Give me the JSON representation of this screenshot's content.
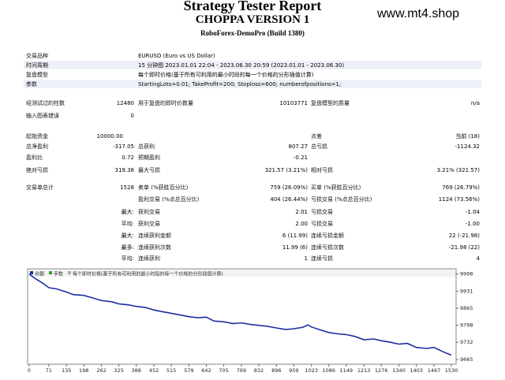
{
  "report": {
    "title": "Strategy Tester Report",
    "expert": "CHOPPA VERSION 1",
    "server": "RoboForex-DemoPro (Build 1380)",
    "watermark": "www.mt4.shop"
  },
  "info": [
    {
      "label": "交易品种",
      "value": "EURUSD (Euro vs US Dollar)"
    },
    {
      "label": "时间周期",
      "value": "15 分钟图 2023.01.01 22:04 - 2023.06.30 20:59 (2023.01.01 - 2023.06.30)"
    },
    {
      "label": "复盘模型",
      "value": "每个即时价格(基于所有可利用的最小时段的每一个价格的分形插值计算)"
    },
    {
      "label": "参数",
      "value": "StartingLots=0.01; TakeProfit=200; Stoploss=600; numberofpositions=1;"
    }
  ],
  "bars": {
    "l1": "经测试过的柱数",
    "v1": "12480",
    "l2": "用于复盘的即时价数量",
    "v2": "10103771",
    "l3": "复盘模型的质量",
    "v3": "n/a",
    "l4": "输入图表错误",
    "v4": "0"
  },
  "stats": {
    "deposit_label": "起始资金",
    "deposit": "10000.00",
    "spread_label": "点差",
    "spread": "当前 (18)",
    "net_label": "总净盈利",
    "net": "-317.05",
    "gross_profit_label": "总获利",
    "gross_profit": "807.27",
    "gross_loss_label": "总亏损",
    "gross_loss": "-1124.32",
    "pf_label": "盈利比",
    "pf": "0.72",
    "ep_label": "预期盈利",
    "ep": "-0.21",
    "abs_dd_label": "绝对亏损",
    "abs_dd": "319.38",
    "max_dd_label": "最大亏损",
    "max_dd": "321.57 (3.21%)",
    "rel_dd_label": "相对亏损",
    "rel_dd": "3.21% (321.57)",
    "trades_label": "交易单总计",
    "trades": "1528",
    "short_label": "卖单 (%获胜百分比)",
    "short": "759 (26.09%)",
    "long_label": "买单 (%获胜百分比)",
    "long": "769 (26.79%)",
    "pt_label": "盈利交易 (%点总百分比)",
    "pt": "404 (26.44%)",
    "lt_label": "亏损交易 (%点总百分比)",
    "lt": "1124 (73.56%)",
    "largest_label": "最大:",
    "lp_label": "获利交易",
    "lp": "2.01",
    "ll_label": "亏损交易",
    "ll": "-1.04",
    "average_label": "平均:",
    "ap_label": "获利交易",
    "ap": "2.00",
    "al_label": "亏损交易",
    "al": "-1.00",
    "max_label": "最大:",
    "mcw_label": "连续获利金额",
    "mcw": "6 (11.99)",
    "mcl_label": "连续亏损金额",
    "mcl": "22 (-21.98)",
    "max2_label": "最多:",
    "mcp_label": "连续获利次数",
    "mcp": "11.99 (6)",
    "mcll_label": "连续亏损次数",
    "mcll": "-21.98 (22)",
    "avg2_label": "平均:",
    "acw_label": "连续获利",
    "acw": "1",
    "acl_label": "连续亏损",
    "acl": "4"
  },
  "chart_data": {
    "type": "line",
    "title": "",
    "legend": [
      "余额",
      "手数",
      "每个即时价格(基于所有可利用的最小时段的每一个价格的分形插值计算)"
    ],
    "xlabel": "",
    "ylabel": "",
    "x_ticks": [
      0,
      71,
      135,
      198,
      262,
      325,
      388,
      452,
      515,
      579,
      642,
      705,
      769,
      832,
      896,
      959,
      1023,
      1086,
      1149,
      1213,
      1276,
      1340,
      1403,
      1467,
      1530
    ],
    "y_ticks": [
      9998,
      9931,
      9865,
      9798,
      9732,
      9665
    ],
    "xlim": [
      0,
      1530
    ],
    "ylim": [
      9665,
      10000
    ],
    "x": [
      0,
      20,
      50,
      71,
      100,
      135,
      160,
      198,
      230,
      262,
      300,
      325,
      360,
      388,
      420,
      452,
      480,
      515,
      550,
      579,
      610,
      642,
      670,
      705,
      740,
      769,
      800,
      832,
      860,
      896,
      930,
      959,
      990,
      1010,
      1023,
      1050,
      1086,
      1120,
      1149,
      1180,
      1213,
      1250,
      1276,
      1310,
      1340,
      1370,
      1403,
      1440,
      1467,
      1500,
      1530
    ],
    "y": [
      9998,
      9982,
      9962,
      9945,
      9940,
      9928,
      9918,
      9915,
      9905,
      9895,
      9890,
      9882,
      9878,
      9872,
      9868,
      9858,
      9852,
      9845,
      9838,
      9832,
      9828,
      9830,
      9815,
      9812,
      9805,
      9808,
      9802,
      9798,
      9795,
      9788,
      9782,
      9785,
      9790,
      9800,
      9792,
      9782,
      9770,
      9765,
      9762,
      9755,
      9742,
      9745,
      9738,
      9732,
      9725,
      9728,
      9712,
      9708,
      9712,
      9695,
      9682
    ]
  }
}
